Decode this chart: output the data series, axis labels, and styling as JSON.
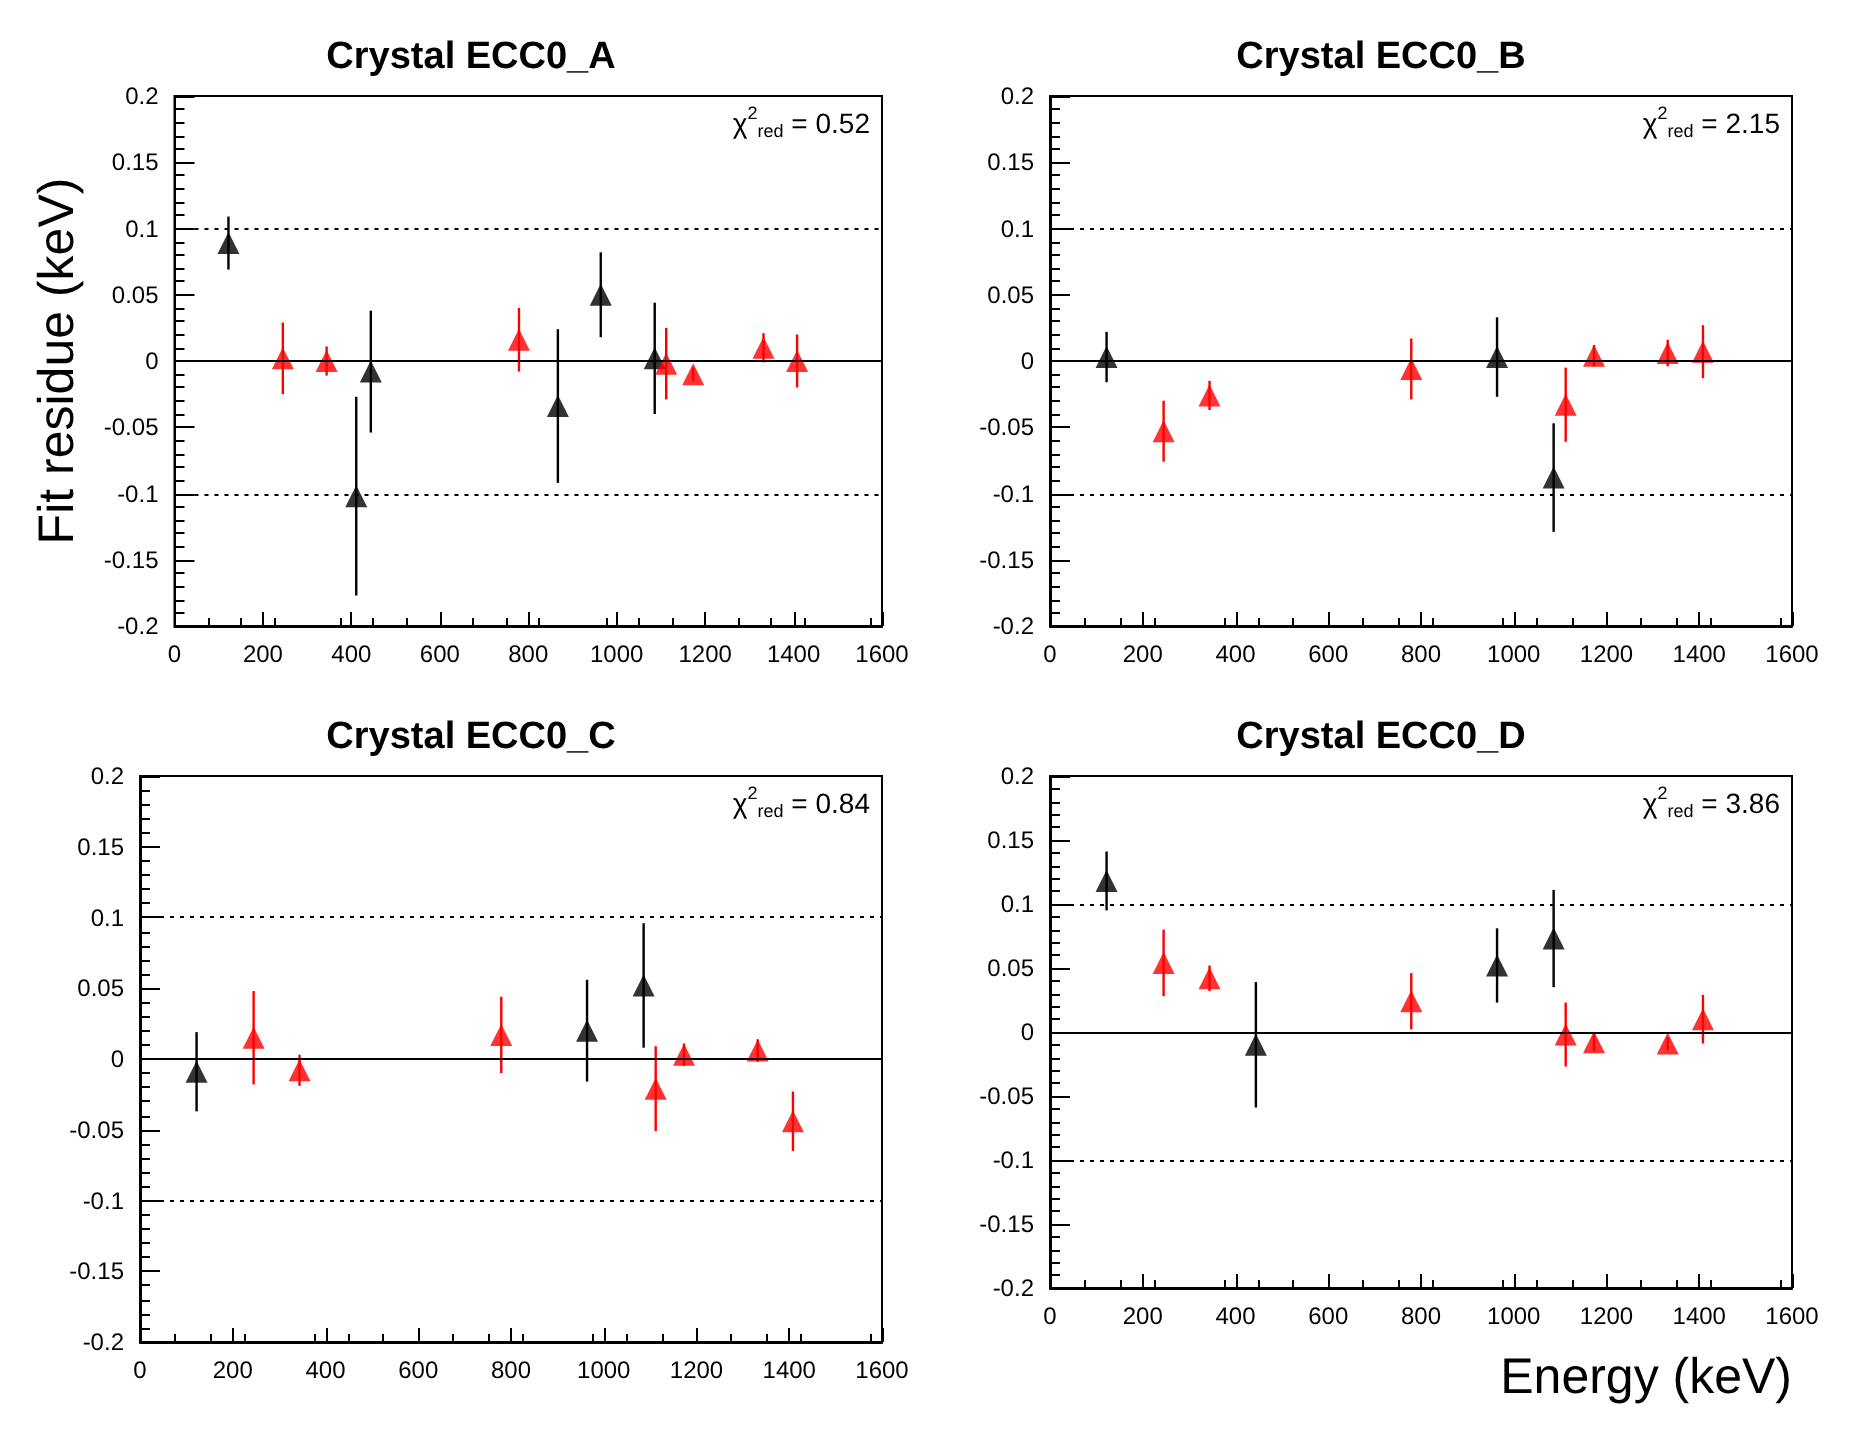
{
  "chart_data": [
    {
      "type": "scatter",
      "title": "Crystal ECC0_A",
      "ylabel": "Fit residue (keV)",
      "annotations": [
        "χ$^{2}$$_{red}$ = 0.52"
      ],
      "marker": "triangle",
      "grid": false,
      "xlim": [
        0,
        1600
      ],
      "xticks": [
        0,
        200,
        400,
        600,
        800,
        1000,
        1200,
        1400,
        1600
      ],
      "ylim": [
        -0.2,
        0.2
      ],
      "yticks": [
        -0.2,
        -0.15,
        -0.1,
        -0.05,
        0,
        0.05,
        0.1,
        0.15,
        0.2
      ],
      "ref_lines": [
        {
          "axis": "y",
          "value": 0,
          "color": "#000000",
          "line_style": "solid"
        },
        {
          "axis": "y",
          "value": 0.1,
          "color": "#000000",
          "line_style": "dotted"
        },
        {
          "axis": "y",
          "value": -0.1,
          "color": "#000000",
          "line_style": "dotted"
        }
      ],
      "series": [
        {
          "color": "#000000",
          "x": [
            122,
            411,
            444,
            867,
            964,
            1086
          ],
          "values": [
            0.089,
            -0.102,
            -0.008,
            -0.034,
            0.05,
            0.002
          ],
          "errors": [
            0.02,
            0.075,
            0.046,
            0.058,
            0.032,
            0.042
          ]
        },
        {
          "color": "#ff0000",
          "x": [
            245,
            344,
            779,
            1112,
            1173,
            1332,
            1408
          ],
          "values": [
            0.002,
            0,
            0.016,
            -0.002,
            -0.01,
            0.01,
            0
          ],
          "errors": [
            0.027,
            0.011,
            0.024,
            0.027,
            0.005,
            0.011,
            0.02
          ]
        }
      ]
    },
    {
      "type": "scatter",
      "title": "Crystal ECC0_B",
      "annotations": [
        "χ$^{2}$$_{red}$ = 2.15"
      ],
      "marker": "triangle",
      "grid": false,
      "xlim": [
        0,
        1600
      ],
      "xticks": [
        0,
        200,
        400,
        600,
        800,
        1000,
        1200,
        1400,
        1600
      ],
      "ylim": [
        -0.2,
        0.2
      ],
      "yticks": [
        -0.2,
        -0.15,
        -0.1,
        -0.05,
        0,
        0.05,
        0.1,
        0.15,
        0.2
      ],
      "ref_lines": [
        {
          "axis": "y",
          "value": 0,
          "color": "#000000",
          "line_style": "solid"
        },
        {
          "axis": "y",
          "value": 0.1,
          "color": "#000000",
          "line_style": "dotted"
        },
        {
          "axis": "y",
          "value": -0.1,
          "color": "#000000",
          "line_style": "dotted"
        }
      ],
      "series": [
        {
          "color": "#000000",
          "x": [
            122,
            964,
            1086
          ],
          "values": [
            0.003,
            0.003,
            -0.088
          ],
          "errors": [
            0.019,
            0.03,
            0.041
          ]
        },
        {
          "color": "#ff0000",
          "x": [
            245,
            344,
            779,
            1112,
            1173,
            1332,
            1408
          ],
          "values": [
            -0.053,
            -0.026,
            -0.006,
            -0.033,
            0.004,
            0.006,
            0.007
          ],
          "errors": [
            0.023,
            0.011,
            0.023,
            0.028,
            0.008,
            0.01,
            0.02
          ]
        }
      ]
    },
    {
      "type": "scatter",
      "title": "Crystal ECC0_C",
      "annotations": [
        "χ$^{2}$$_{red}$ = 0.84"
      ],
      "marker": "triangle",
      "grid": false,
      "xlim": [
        0,
        1600
      ],
      "xticks": [
        0,
        200,
        400,
        600,
        800,
        1000,
        1200,
        1400,
        1600
      ],
      "ylim": [
        -0.2,
        0.2
      ],
      "yticks": [
        -0.2,
        -0.15,
        -0.1,
        -0.05,
        0,
        0.05,
        0.1,
        0.15,
        0.2
      ],
      "ref_lines": [
        {
          "axis": "y",
          "value": 0,
          "color": "#000000",
          "line_style": "solid"
        },
        {
          "axis": "y",
          "value": 0.1,
          "color": "#000000",
          "line_style": "dotted"
        },
        {
          "axis": "y",
          "value": -0.1,
          "color": "#000000",
          "line_style": "dotted"
        }
      ],
      "series": [
        {
          "color": "#000000",
          "x": [
            122,
            964,
            1086
          ],
          "values": [
            -0.009,
            0.02,
            0.052
          ],
          "errors": [
            0.028,
            0.036,
            0.044
          ]
        },
        {
          "color": "#ff0000",
          "x": [
            245,
            344,
            779,
            1112,
            1173,
            1332,
            1408
          ],
          "values": [
            0.015,
            -0.008,
            0.017,
            -0.021,
            0.003,
            0.006,
            -0.044
          ],
          "errors": [
            0.033,
            0.011,
            0.027,
            0.03,
            0.008,
            0.008,
            0.021
          ]
        }
      ]
    },
    {
      "type": "scatter",
      "title": "Crystal ECC0_D",
      "xlabel": "Energy (keV)",
      "annotations": [
        "χ$^{2}$$_{red}$ = 3.86"
      ],
      "marker": "triangle",
      "grid": false,
      "xlim": [
        0,
        1600
      ],
      "xticks": [
        0,
        200,
        400,
        600,
        800,
        1000,
        1200,
        1400,
        1600
      ],
      "ylim": [
        -0.2,
        0.2
      ],
      "yticks": [
        -0.2,
        -0.15,
        -0.1,
        -0.05,
        0,
        0.05,
        0.1,
        0.15,
        0.2
      ],
      "ref_lines": [
        {
          "axis": "y",
          "value": 0,
          "color": "#000000",
          "line_style": "solid"
        },
        {
          "axis": "y",
          "value": 0.1,
          "color": "#000000",
          "line_style": "dotted"
        },
        {
          "axis": "y",
          "value": -0.1,
          "color": "#000000",
          "line_style": "dotted"
        }
      ],
      "series": [
        {
          "color": "#000000",
          "x": [
            122,
            444,
            964,
            1086
          ],
          "values": [
            0.118,
            -0.01,
            0.052,
            0.073
          ],
          "errors": [
            0.023,
            0.049,
            0.029,
            0.038
          ]
        },
        {
          "color": "#ff0000",
          "x": [
            245,
            344,
            779,
            1112,
            1173,
            1332,
            1408
          ],
          "values": [
            0.054,
            0.042,
            0.024,
            -0.002,
            -0.008,
            -0.009,
            0.01
          ],
          "errors": [
            0.026,
            0.01,
            0.022,
            0.025,
            0.007,
            0.005,
            0.019
          ]
        }
      ]
    }
  ]
}
